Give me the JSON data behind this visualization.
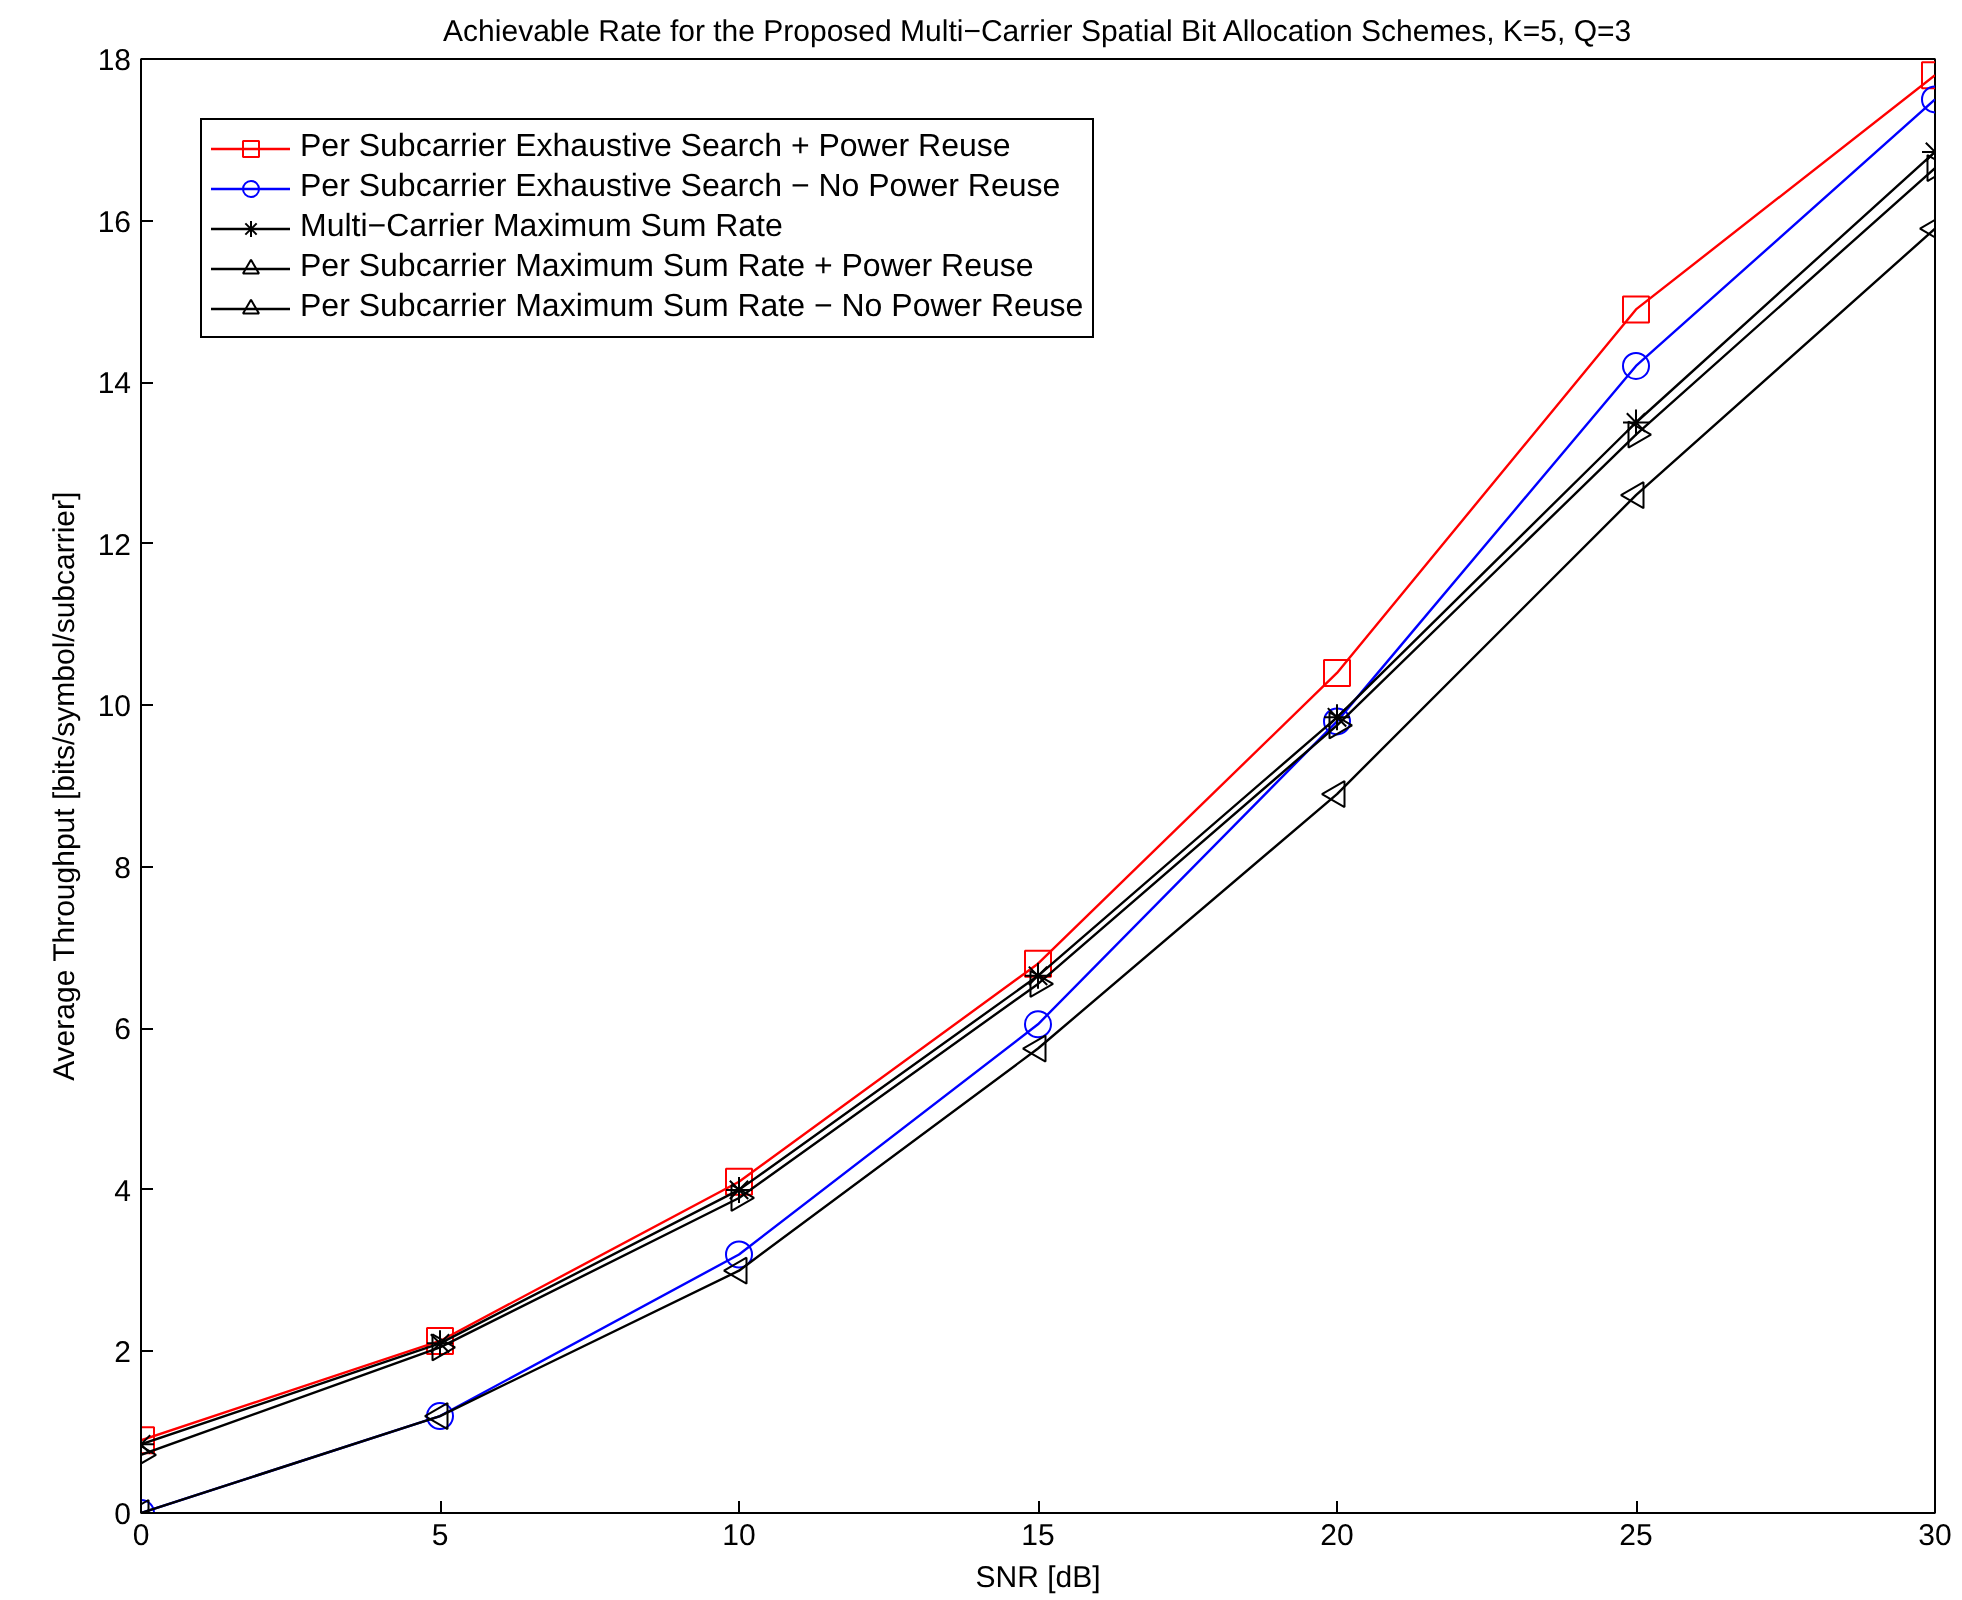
{
  "chart_data": {
    "type": "line",
    "title": "Achievable Rate for the Proposed Multi−Carrier Spatial Bit Allocation Schemes, K=5, Q=3",
    "xlabel": "SNR [dB]",
    "ylabel": "Average Throughput [bits/symbol/subcarrier]",
    "x": [
      0,
      5,
      10,
      15,
      20,
      25,
      30
    ],
    "series": [
      {
        "name": "Per Subcarrier Exhaustive Search + Power Reuse",
        "color": "#ff0000",
        "marker": "square",
        "values": [
          0.9,
          2.13,
          4.1,
          6.8,
          10.4,
          14.9,
          17.8
        ]
      },
      {
        "name": "Per Subcarrier Exhaustive Search − No Power Reuse",
        "color": "#0000ff",
        "marker": "circle",
        "values": [
          0,
          1.2,
          3.2,
          6.05,
          9.8,
          14.2,
          17.5
        ]
      },
      {
        "name": "Multi−Carrier Maximum Sum Rate",
        "color": "#000000",
        "marker": "cross",
        "values": [
          0.85,
          2.1,
          4.0,
          6.65,
          9.85,
          13.5,
          16.85
        ]
      },
      {
        "name": "Per Subcarrier Maximum Sum Rate + Power Reuse",
        "color": "#000000",
        "marker": "triangle_right",
        "values": [
          0.72,
          2.05,
          3.9,
          6.55,
          9.75,
          13.35,
          16.65
        ]
      },
      {
        "name": "Per Subcarrier Maximum Sum Rate − No Power Reuse",
        "color": "#000000",
        "marker": "triangle_left",
        "values": [
          0,
          1.2,
          3.0,
          5.75,
          8.9,
          12.6,
          15.9
        ]
      }
    ],
    "xlim": [
      0,
      30
    ],
    "xticks": [
      0,
      5,
      10,
      15,
      20,
      25,
      30
    ],
    "ylim": [
      0,
      18
    ],
    "yticks": [
      0,
      2,
      4,
      6,
      8,
      10,
      12,
      14,
      16,
      18
    ],
    "grid": false,
    "legend": "top left",
    "line_style": "solid"
  }
}
